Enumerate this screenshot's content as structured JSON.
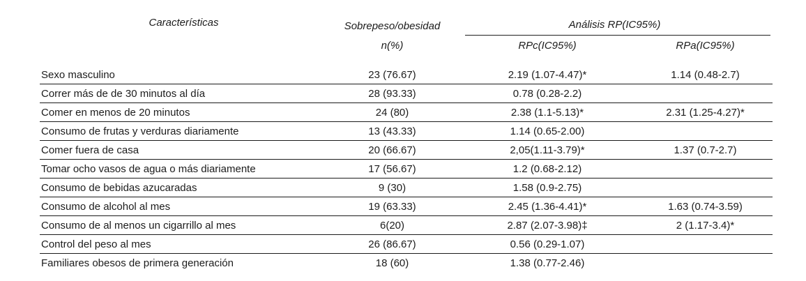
{
  "table": {
    "columns": {
      "characteristics": "Características",
      "overweight": "Sobrepeso/obesidad",
      "overweight_sub": "n(%)",
      "analysis": "Análisis RP(IC95%)",
      "rpc": "RPc(IC95%)",
      "rpa": "RPa(IC95%)"
    },
    "rows": [
      {
        "label": "Sexo masculino",
        "n": "23 (76.67)",
        "rpc": "2.19 (1.07-4.47)*",
        "rpa": "1.14 (0.48-2.7)"
      },
      {
        "label": "Correr más de de 30 minutos al día",
        "n": "28 (93.33)",
        "rpc": "0.78 (0.28-2.2)",
        "rpa": ""
      },
      {
        "label": "Comer en menos de 20 minutos",
        "n": "24 (80)",
        "rpc": "2.38 (1.1-5.13)*",
        "rpa": "2.31 (1.25-4.27)*"
      },
      {
        "label": "Consumo de frutas y verduras diariamente",
        "n": "13 (43.33)",
        "rpc": "1.14 (0.65-2.00)",
        "rpa": ""
      },
      {
        "label": "Comer fuera de casa",
        "n": "20 (66.67)",
        "rpc": "2,05(1.11-3.79)*",
        "rpa": "1.37 (0.7-2.7)"
      },
      {
        "label": "Tomar ocho vasos de agua o más diariamente",
        "n": "17 (56.67)",
        "rpc": "1.2 (0.68-2.12)",
        "rpa": ""
      },
      {
        "label": "Consumo de bebidas azucaradas",
        "n": "9 (30)",
        "rpc": "1.58 (0.9-2.75)",
        "rpa": ""
      },
      {
        "label": "Consumo de alcohol al mes",
        "n": "19 (63.33)",
        "rpc": "2.45 (1.36-4.41)*",
        "rpa": "1.63 (0.74-3.59)"
      },
      {
        "label": "Consumo de al menos un cigarrillo al mes",
        "n": "6(20)",
        "rpc": "2.87 (2.07-3.98)‡",
        "rpa": "2 (1.17-3.4)*"
      },
      {
        "label": "Control del peso al mes",
        "n": "26 (86.67)",
        "rpc": "0.56 (0.29-1.07)",
        "rpa": ""
      },
      {
        "label": "Familiares obesos de primera generación",
        "n": "18 (60)",
        "rpc": "1.38 (0.77-2.46)",
        "rpa": ""
      }
    ]
  }
}
